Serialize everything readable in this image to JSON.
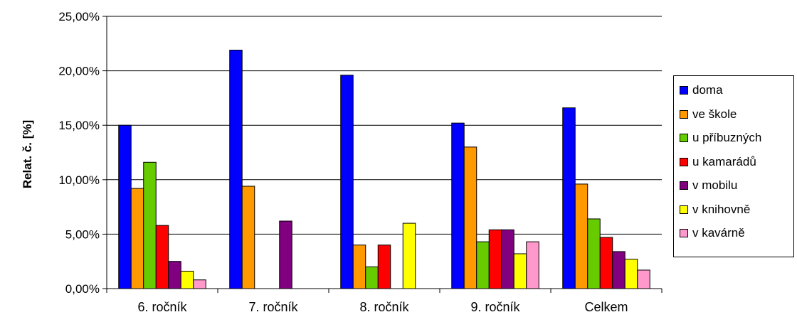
{
  "chart_data": {
    "type": "bar",
    "ylabel": "Relat. č. [%]",
    "ylim": [
      0,
      25
    ],
    "yticks": [
      "0,00%",
      "5,00%",
      "10,00%",
      "15,00%",
      "20,00%",
      "25,00%"
    ],
    "grid": true,
    "legend_position": "right",
    "categories": [
      "6. ročník",
      "7. ročník",
      "8. ročník",
      "9. ročník",
      "Celkem"
    ],
    "series": [
      {
        "name": "doma",
        "color": "#0000FF",
        "values": [
          15.0,
          21.9,
          19.6,
          15.2,
          16.6
        ]
      },
      {
        "name": "ve škole",
        "color": "#FF9900",
        "values": [
          9.2,
          9.4,
          4.0,
          13.0,
          9.6
        ]
      },
      {
        "name": "u příbuzných",
        "color": "#66CC00",
        "values": [
          11.6,
          0,
          2.0,
          4.3,
          6.4
        ]
      },
      {
        "name": "u kamarádů",
        "color": "#FF0000",
        "values": [
          5.8,
          0,
          4.0,
          5.4,
          4.7
        ]
      },
      {
        "name": "v mobilu",
        "color": "#800080",
        "values": [
          2.5,
          6.2,
          0,
          5.4,
          3.4
        ]
      },
      {
        "name": "v knihovně",
        "color": "#FFFF00",
        "values": [
          1.6,
          0,
          6.0,
          3.2,
          2.7
        ]
      },
      {
        "name": "v kavárně",
        "color": "#FF99CC",
        "values": [
          0.8,
          0,
          0,
          4.3,
          1.7
        ]
      }
    ]
  }
}
